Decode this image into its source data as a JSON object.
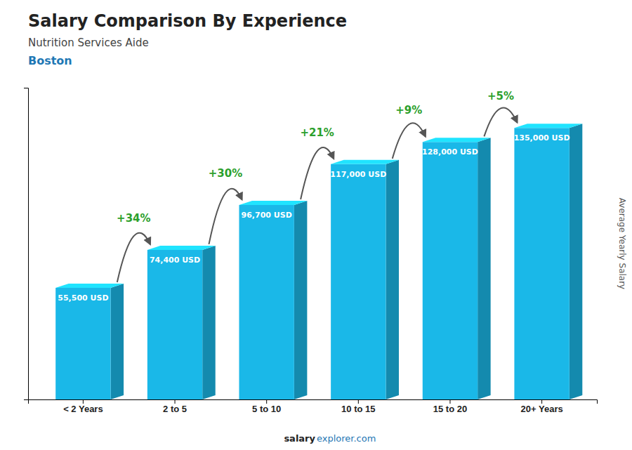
{
  "chart_data": {
    "type": "bar",
    "title": "Salary Comparison By Experience",
    "subtitle": "Nutrition Services Aide",
    "ylabel": "Average Yearly Salary",
    "annotations": [
      "Boston",
      "salary",
      "explorer.com"
    ],
    "categories": [
      "< 2 Years",
      "2 to 5",
      "5 to 10",
      "10 to 15",
      "15 to 20",
      "20+ Years"
    ],
    "values": [
      55500,
      74400,
      96700,
      117000,
      128000,
      135000
    ],
    "value_labels": [
      "55,500 USD",
      "74,400 USD",
      "96,700 USD",
      "117,000 USD",
      "128,000 USD",
      "135,000 USD"
    ],
    "pct_changes": [
      "+34%",
      "+30%",
      "+21%",
      "+9%",
      "+5%"
    ],
    "color": "#1ab8e8",
    "ylim": [
      0,
      155000
    ],
    "data_labels": true,
    "tick_labels": "x",
    "grid": false
  }
}
